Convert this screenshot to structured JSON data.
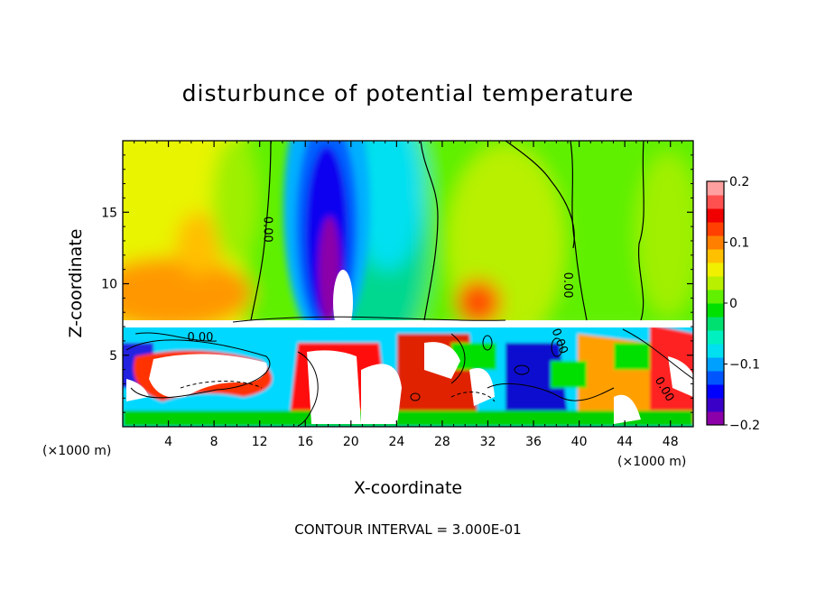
{
  "chart_data": {
    "type": "heatmap",
    "title": "disturbunce of potential temperature",
    "xlabel": "X-coordinate",
    "ylabel": "Z-coordinate",
    "x_unit_left": "(×1000 m)",
    "x_unit_right": "(×1000 m)",
    "xlim": [
      0,
      50
    ],
    "ylim": [
      0,
      20
    ],
    "x_ticks": [
      4,
      8,
      12,
      16,
      20,
      24,
      28,
      32,
      36,
      40,
      44,
      48
    ],
    "y_ticks": [
      5,
      10,
      15
    ],
    "colorbar": {
      "vmin": -0.2,
      "vmax": 0.2,
      "ticks": [
        0.2,
        0.1,
        0,
        -0.1,
        -0.2
      ],
      "tick_labels": [
        "0.2",
        "0.1",
        "0",
        "−0.1",
        "−0.2"
      ],
      "colors": [
        "#8b00a8",
        "#3b00c8",
        "#0000ff",
        "#0055ff",
        "#00a0ff",
        "#00e0f0",
        "#00f0c0",
        "#00e070",
        "#00e000",
        "#60f000",
        "#b8f000",
        "#f0f000",
        "#ffc000",
        "#ff8000",
        "#ff4000",
        "#f00000",
        "#ff5050",
        "#ffa0a0"
      ]
    },
    "contour_labels": [
      {
        "text": "0.00",
        "x": 12.4,
        "y": 13.8,
        "rotation": 90
      },
      {
        "text": "0.00",
        "x": 38.7,
        "y": 9.9,
        "rotation": 90
      },
      {
        "text": "0.00",
        "x": 6.8,
        "y": 6.0,
        "rotation": 0
      },
      {
        "text": "0.00",
        "x": 38.0,
        "y": 5.9,
        "rotation": 70
      },
      {
        "text": "0.00",
        "x": 47.2,
        "y": 2.5,
        "rotation": 60
      }
    ],
    "contour_interval": "CONTOUR INTERVAL = 3.000E-01"
  }
}
